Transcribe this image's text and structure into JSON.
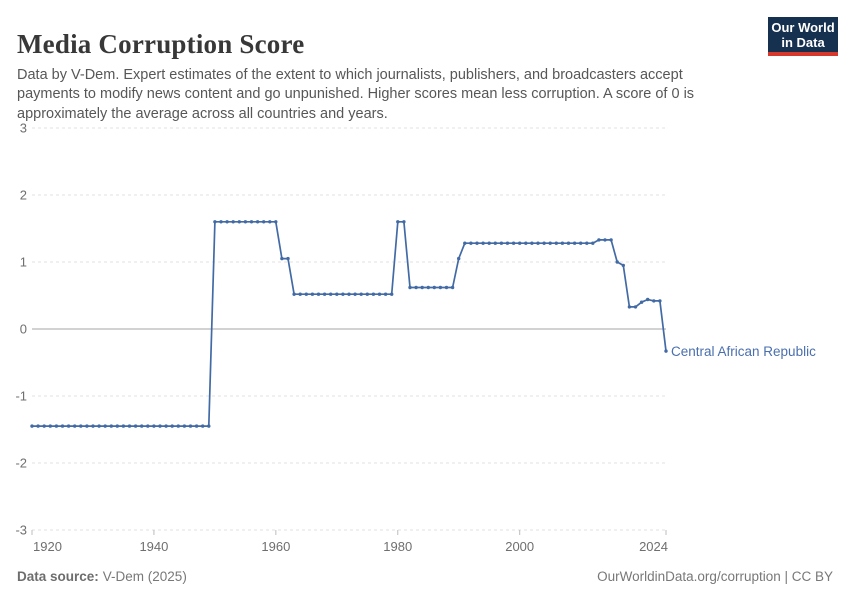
{
  "header": {
    "title": "Media Corruption Score",
    "subtitle": "Data by V-Dem. Expert estimates of the extent to which journalists, publishers, and broadcasters accept payments to modify news content and go unpunished. Higher scores mean less corruption. A score of 0 is approximately the average across all countries and years.",
    "logo": {
      "line1": "Our World",
      "line2": "in Data"
    }
  },
  "footer": {
    "source_label": "Data source:",
    "source_value": "V-Dem (2025)",
    "attribution": "OurWorldinData.org/corruption | CC BY"
  },
  "colors": {
    "line": "#426aa5",
    "entity_label": "#4a6fae",
    "logo_bg": "#16304f",
    "logo_accent": "#d7382d",
    "grid": "#e1e1e1",
    "zero_line": "#a6a6a6",
    "tick_mark": "#bcbcbc",
    "tick_label": "#6f6f6f"
  },
  "chart_data": {
    "type": "line",
    "title": "Media Corruption Score",
    "xlabel": "",
    "ylabel": "",
    "xlim": [
      1920,
      2024
    ],
    "ylim": [
      -3,
      3
    ],
    "x_ticks": [
      1920,
      1940,
      1960,
      1980,
      2000,
      2024
    ],
    "y_ticks": [
      3,
      2,
      1,
      0,
      -1,
      -2,
      -3
    ],
    "grid": "horizontal-dashed, solid zero line",
    "legend_position": "end-of-line label",
    "line_color": "#426aa5",
    "series": [
      {
        "name": "Central African Republic",
        "start_year": 1920,
        "end_year": 2024,
        "values": [
          -1.45,
          -1.45,
          -1.45,
          -1.45,
          -1.45,
          -1.45,
          -1.45,
          -1.45,
          -1.45,
          -1.45,
          -1.45,
          -1.45,
          -1.45,
          -1.45,
          -1.45,
          -1.45,
          -1.45,
          -1.45,
          -1.45,
          -1.45,
          -1.45,
          -1.45,
          -1.45,
          -1.45,
          -1.45,
          -1.45,
          -1.45,
          -1.45,
          -1.45,
          -1.45,
          1.6,
          1.6,
          1.6,
          1.6,
          1.6,
          1.6,
          1.6,
          1.6,
          1.6,
          1.6,
          1.6,
          1.05,
          1.05,
          0.52,
          0.52,
          0.52,
          0.52,
          0.52,
          0.52,
          0.52,
          0.52,
          0.52,
          0.52,
          0.52,
          0.52,
          0.52,
          0.52,
          0.52,
          0.52,
          0.52,
          1.6,
          1.6,
          0.62,
          0.62,
          0.62,
          0.62,
          0.62,
          0.62,
          0.62,
          0.62,
          1.05,
          1.28,
          1.28,
          1.28,
          1.28,
          1.28,
          1.28,
          1.28,
          1.28,
          1.28,
          1.28,
          1.28,
          1.28,
          1.28,
          1.28,
          1.28,
          1.28,
          1.28,
          1.28,
          1.28,
          1.28,
          1.28,
          1.28,
          1.33,
          1.33,
          1.33,
          1.0,
          0.95,
          0.33,
          0.33,
          0.4,
          0.44,
          0.42,
          0.42,
          -0.33
        ]
      }
    ]
  }
}
